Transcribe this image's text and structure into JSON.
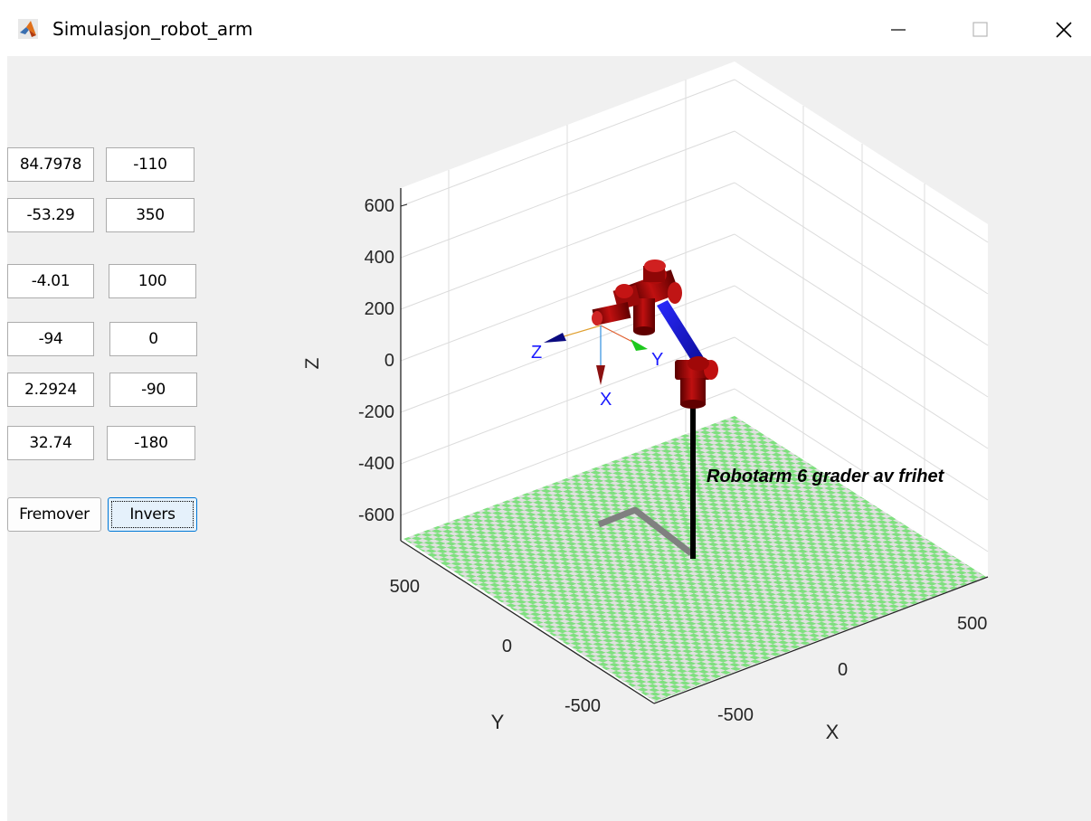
{
  "window": {
    "title": "Simulasjon_robot_arm",
    "app_icon": "matlab-icon",
    "controls": [
      "minimize-icon",
      "maximize-icon",
      "close-icon"
    ]
  },
  "fields": [
    {
      "name": "field-1-left",
      "value": "84.7978"
    },
    {
      "name": "field-1-right",
      "value": "-110"
    },
    {
      "name": "field-2-left",
      "value": "-53.29"
    },
    {
      "name": "field-2-right",
      "value": "350"
    },
    {
      "name": "field-3-left",
      "value": "-4.01"
    },
    {
      "name": "field-3-right",
      "value": "100"
    },
    {
      "name": "field-4-left",
      "value": "-94"
    },
    {
      "name": "field-4-right",
      "value": "0"
    },
    {
      "name": "field-5-left",
      "value": "2.2924"
    },
    {
      "name": "field-5-right",
      "value": "-90"
    },
    {
      "name": "field-6-left",
      "value": "32.74"
    },
    {
      "name": "field-6-right",
      "value": "-180"
    }
  ],
  "buttons": {
    "forward_label": "Fremover",
    "inverse_label": "Invers"
  },
  "plot": {
    "z_axis_label": "Z",
    "y_axis_label": "Y",
    "x_axis_label": "X",
    "z_ticks": [
      "600",
      "400",
      "200",
      "0",
      "-200",
      "-400",
      "-600"
    ],
    "y_ticks": [
      "500",
      "0",
      "-500"
    ],
    "x_ticks": [
      "500",
      "0",
      "-500"
    ],
    "annotation": "Robotarm 6 grader av frihet",
    "frame_labels": {
      "x": "X",
      "y": "Y",
      "z": "Z"
    }
  },
  "colors": {
    "link_red": "#8b0000",
    "link_blue": "#1010c8",
    "floor_green": "#7fe07f",
    "floor_grey": "#e0e0e0",
    "frame_label": "#1a1aff"
  }
}
